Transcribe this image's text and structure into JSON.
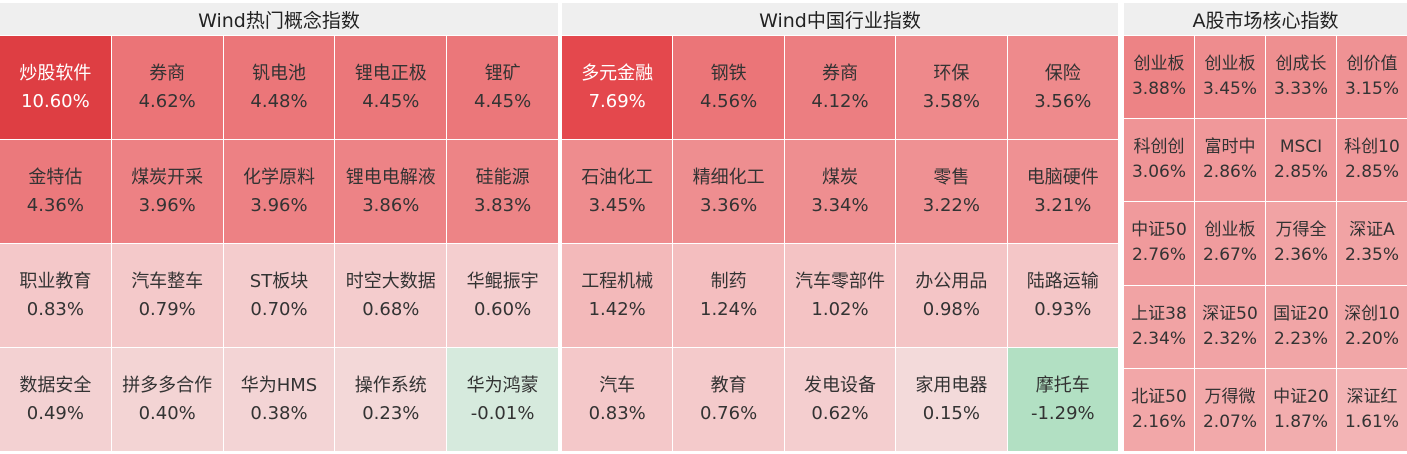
{
  "panels": [
    {
      "title": "Wind热门概念指数",
      "tiles": [
        {
          "name": "炒股软件",
          "change": "10.60%"
        },
        {
          "name": "券商",
          "change": "4.62%"
        },
        {
          "name": "钒电池",
          "change": "4.48%"
        },
        {
          "name": "锂电正极",
          "change": "4.45%"
        },
        {
          "name": "锂矿",
          "change": "4.45%"
        },
        {
          "name": "金特估",
          "change": "4.36%"
        },
        {
          "name": "煤炭开采",
          "change": "3.96%"
        },
        {
          "name": "化学原料",
          "change": "3.96%"
        },
        {
          "name": "锂电电解液",
          "change": "3.86%"
        },
        {
          "name": "硅能源",
          "change": "3.83%"
        },
        {
          "name": "职业教育",
          "change": "0.83%"
        },
        {
          "name": "汽车整车",
          "change": "0.79%"
        },
        {
          "name": "ST板块",
          "change": "0.70%"
        },
        {
          "name": "时空大数据",
          "change": "0.68%"
        },
        {
          "name": "华鲲振宇",
          "change": "0.60%"
        },
        {
          "name": "数据安全",
          "change": "0.49%"
        },
        {
          "name": "拼多多合作",
          "change": "0.40%"
        },
        {
          "name": "华为HMS",
          "change": "0.38%"
        },
        {
          "name": "操作系统",
          "change": "0.23%"
        },
        {
          "name": "华为鸿蒙",
          "change": "-0.01%"
        }
      ]
    },
    {
      "title": "Wind中国行业指数",
      "tiles": [
        {
          "name": "多元金融",
          "change": "7.69%"
        },
        {
          "name": "钢铁",
          "change": "4.56%"
        },
        {
          "name": "券商",
          "change": "4.12%"
        },
        {
          "name": "环保",
          "change": "3.58%"
        },
        {
          "name": "保险",
          "change": "3.56%"
        },
        {
          "name": "石油化工",
          "change": "3.45%"
        },
        {
          "name": "精细化工",
          "change": "3.36%"
        },
        {
          "name": "煤炭",
          "change": "3.34%"
        },
        {
          "name": "零售",
          "change": "3.22%"
        },
        {
          "name": "电脑硬件",
          "change": "3.21%"
        },
        {
          "name": "工程机械",
          "change": "1.42%"
        },
        {
          "name": "制药",
          "change": "1.24%"
        },
        {
          "name": "汽车零部件",
          "change": "1.02%"
        },
        {
          "name": "办公用品",
          "change": "0.98%"
        },
        {
          "name": "陆路运输",
          "change": "0.93%"
        },
        {
          "name": "汽车",
          "change": "0.83%"
        },
        {
          "name": "教育",
          "change": "0.76%"
        },
        {
          "name": "发电设备",
          "change": "0.62%"
        },
        {
          "name": "家用电器",
          "change": "0.15%"
        },
        {
          "name": "摩托车",
          "change": "-1.29%"
        }
      ]
    },
    {
      "title": "A股市场核心指数",
      "tiles": [
        {
          "name": "创业板",
          "change": "3.88%"
        },
        {
          "name": "创业板",
          "change": "3.45%"
        },
        {
          "name": "创成长",
          "change": "3.33%"
        },
        {
          "name": "创价值",
          "change": "3.15%"
        },
        {
          "name": "科创创",
          "change": "3.06%"
        },
        {
          "name": "富时中",
          "change": "2.86%"
        },
        {
          "name": "MSCI",
          "change": "2.85%"
        },
        {
          "name": "科创10",
          "change": "2.85%"
        },
        {
          "name": "中证50",
          "change": "2.76%"
        },
        {
          "name": "创业板",
          "change": "2.67%"
        },
        {
          "name": "万得全",
          "change": "2.36%"
        },
        {
          "name": "深证A",
          "change": "2.35%"
        },
        {
          "name": "上证38",
          "change": "2.34%"
        },
        {
          "name": "深证50",
          "change": "2.32%"
        },
        {
          "name": "国证20",
          "change": "2.23%"
        },
        {
          "name": "深创10",
          "change": "2.20%"
        },
        {
          "name": "北证50",
          "change": "2.16%"
        },
        {
          "name": "万得微",
          "change": "2.07%"
        },
        {
          "name": "中证20",
          "change": "1.87%"
        },
        {
          "name": "深证红",
          "change": "1.61%"
        }
      ]
    }
  ]
}
